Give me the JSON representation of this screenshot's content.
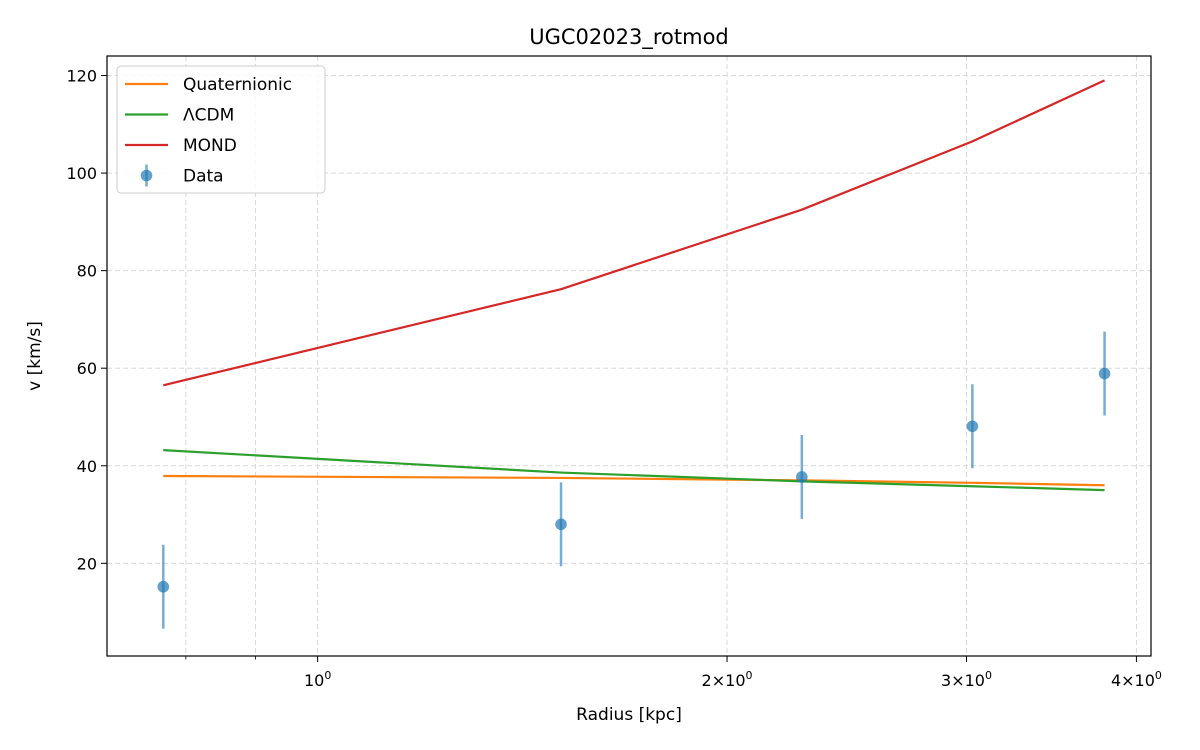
{
  "chart_data": {
    "type": "line",
    "title": "UGC02023_rotmod",
    "xlabel": "Radius [kpc]",
    "ylabel": "v [km/s]",
    "xscale": "log",
    "xlim": [
      0.7,
      4.1
    ],
    "ylim": [
      1,
      124
    ],
    "x_major_ticks": [
      {
        "value": 1,
        "base": "10",
        "exp": "0"
      },
      {
        "value": 2,
        "base": "2×10",
        "exp": "0"
      },
      {
        "value": 3,
        "base": "3×10",
        "exp": "0"
      },
      {
        "value": 4,
        "base": "4×10",
        "exp": "0"
      }
    ],
    "x_minor_ticks": [
      0.8,
      0.9
    ],
    "y_ticks": [
      20,
      40,
      60,
      80,
      100,
      120
    ],
    "grid": true,
    "legend_position": "upper-left",
    "series": [
      {
        "name": "Quaternionic",
        "color": "#ff7f0e",
        "kind": "line",
        "x": [
          0.77,
          1.51,
          2.27,
          3.03,
          3.79
        ],
        "y": [
          37.9,
          37.5,
          37.0,
          36.5,
          36.0
        ]
      },
      {
        "name": "ΛCDM",
        "color": "#2ca02c",
        "kind": "line",
        "x": [
          0.77,
          1.51,
          2.27,
          3.03,
          3.79
        ],
        "y": [
          43.2,
          38.6,
          36.8,
          35.8,
          35.0
        ]
      },
      {
        "name": "MOND",
        "color": "#d62728",
        "kind": "line",
        "x": [
          0.77,
          1.51,
          2.27,
          3.03,
          3.79
        ],
        "y": [
          56.5,
          76.2,
          92.5,
          106.5,
          119.0
        ]
      },
      {
        "name": "Data",
        "color": "#1f77b4",
        "kind": "errorbar",
        "x": [
          0.77,
          1.51,
          2.27,
          3.03,
          3.79
        ],
        "y": [
          15.2,
          28.0,
          37.7,
          48.1,
          58.9
        ],
        "err": [
          8.6,
          8.6,
          8.6,
          8.6,
          8.6
        ]
      }
    ]
  }
}
